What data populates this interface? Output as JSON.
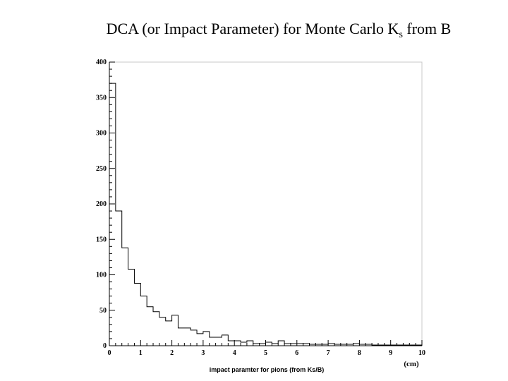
{
  "slide": {
    "title_main": "DCA (or Impact Parameter) for Monte Carlo K",
    "title_sub": "s",
    "title_tail": " from B"
  },
  "chart_data": {
    "type": "histogram",
    "title": "",
    "xlabel": "impact paramter for pions (from Ks/B)",
    "x_unit_label": "(cm)",
    "ylabel": "",
    "xlim": [
      0,
      10
    ],
    "ylim": [
      0,
      400
    ],
    "x_ticks": [
      "0",
      "1",
      "2",
      "3",
      "4",
      "5",
      "6",
      "7",
      "8",
      "9",
      "10"
    ],
    "y_ticks": [
      "0",
      "50",
      "100",
      "150",
      "200",
      "250",
      "300",
      "350",
      "400"
    ],
    "bin_width": 0.2,
    "bin_start": 0,
    "values": [
      370,
      190,
      138,
      108,
      88,
      70,
      55,
      48,
      40,
      35,
      43,
      25,
      25,
      22,
      17,
      20,
      12,
      12,
      15,
      7,
      7,
      5,
      7,
      3,
      3,
      5,
      3,
      7,
      3,
      3,
      3,
      3,
      2,
      2,
      2,
      3,
      2,
      2,
      2,
      3,
      2,
      2,
      1,
      1,
      1,
      1,
      1,
      1,
      1,
      1
    ],
    "grid": false,
    "legend": "none",
    "line_color": "#000000",
    "frame_color": "#c8c8c8"
  }
}
